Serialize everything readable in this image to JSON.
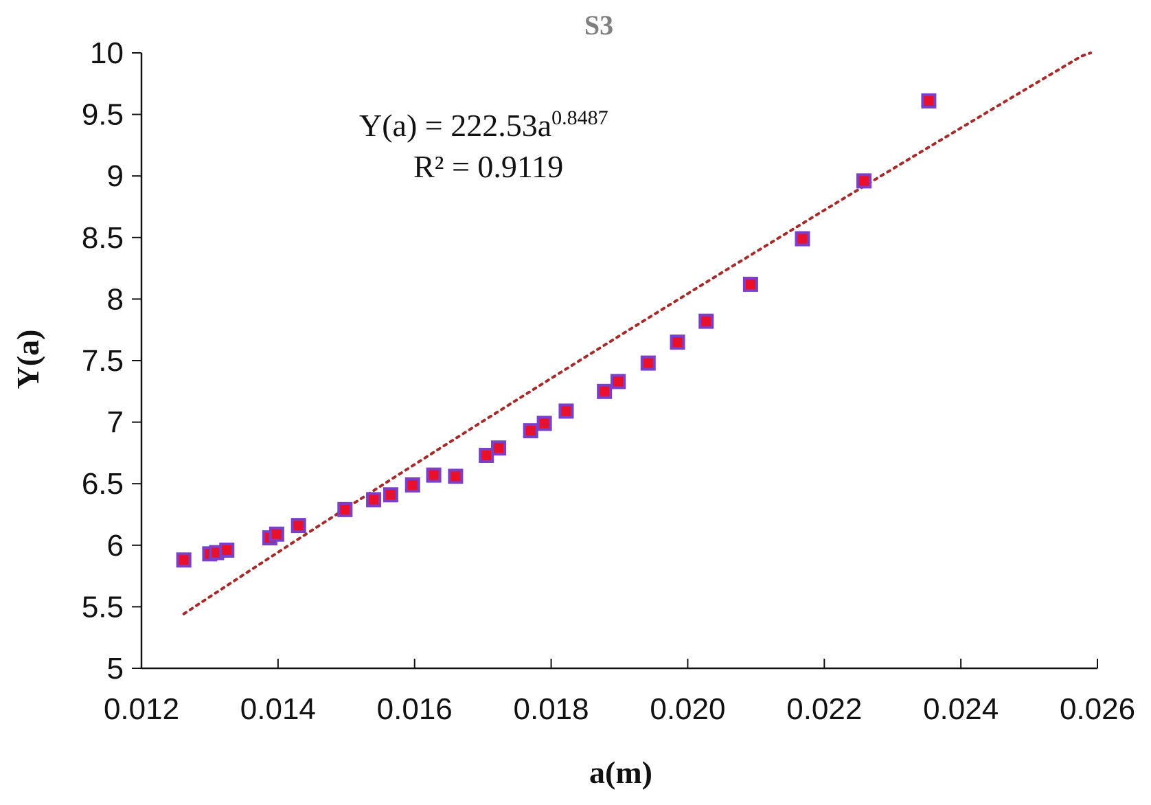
{
  "chart_data": {
    "type": "scatter",
    "title": "S3",
    "xlabel": "a(m)",
    "ylabel": "Y(a)",
    "xlim": [
      0.012,
      0.026
    ],
    "ylim": [
      5,
      10
    ],
    "x_ticks": [
      "0.012",
      "0.014",
      "0.016",
      "0.018",
      "0.020",
      "0.022",
      "0.024",
      "0.026"
    ],
    "y_ticks": [
      "5",
      "5.5",
      "6",
      "6.5",
      "7",
      "7.5",
      "8",
      "8.5",
      "9",
      "9.5",
      "10"
    ],
    "grid": false,
    "marker": "square",
    "marker_fill": "#e8102a",
    "marker_edge": "#7b3fc8",
    "trendline_color": "#a52a2a",
    "series": [
      {
        "points": [
          [
            0.01262,
            5.88
          ],
          [
            0.013,
            5.93
          ],
          [
            0.0131,
            5.94
          ],
          [
            0.01325,
            5.96
          ],
          [
            0.01388,
            6.06
          ],
          [
            0.01398,
            6.09
          ],
          [
            0.0143,
            6.16
          ],
          [
            0.01498,
            6.29
          ],
          [
            0.0154,
            6.37
          ],
          [
            0.01565,
            6.41
          ],
          [
            0.01597,
            6.49
          ],
          [
            0.01628,
            6.57
          ],
          [
            0.0166,
            6.56
          ],
          [
            0.01705,
            6.73
          ],
          [
            0.01723,
            6.79
          ],
          [
            0.0177,
            6.93
          ],
          [
            0.0179,
            6.99
          ],
          [
            0.01822,
            7.09
          ],
          [
            0.01878,
            7.25
          ],
          [
            0.01898,
            7.33
          ],
          [
            0.01942,
            7.48
          ],
          [
            0.01985,
            7.65
          ],
          [
            0.02027,
            7.82
          ],
          [
            0.02092,
            8.12
          ],
          [
            0.02168,
            8.49
          ],
          [
            0.02258,
            8.96
          ],
          [
            0.02353,
            9.61
          ]
        ]
      }
    ],
    "trendline": {
      "type": "power",
      "coefficient": 222.53,
      "exponent": 0.8487,
      "x_range": [
        0.01262,
        0.0259
      ],
      "equation_main": "Y(a) = 222.53a",
      "equation_exponent": "0.8487",
      "r2_label": "R² = 0.9119"
    }
  }
}
